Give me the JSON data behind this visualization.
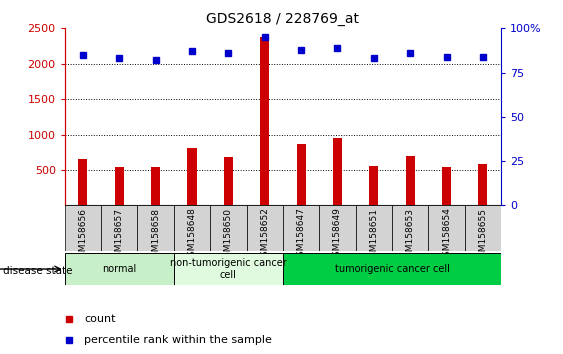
{
  "title": "GDS2618 / 228769_at",
  "samples": [
    "GSM158656",
    "GSM158657",
    "GSM158658",
    "GSM158648",
    "GSM158650",
    "GSM158652",
    "GSM158647",
    "GSM158649",
    "GSM158651",
    "GSM158653",
    "GSM158654",
    "GSM158655"
  ],
  "counts": [
    650,
    540,
    540,
    810,
    680,
    2380,
    870,
    950,
    560,
    700,
    540,
    590
  ],
  "percentiles": [
    85,
    83,
    82,
    87,
    86,
    95,
    88,
    89,
    83,
    86,
    84,
    84
  ],
  "groups": [
    {
      "label": "normal",
      "start": 0,
      "end": 3,
      "color": "#c8f0c8"
    },
    {
      "label": "non-tumorigenic cancer\ncell",
      "start": 3,
      "end": 6,
      "color": "#e0fae0"
    },
    {
      "label": "tumorigenic cancer cell",
      "start": 6,
      "end": 12,
      "color": "#00cc44"
    }
  ],
  "count_color": "#cc0000",
  "percentile_color": "#0000cc",
  "plot_bg": "#ffffff",
  "tick_bg": "#d3d3d3",
  "ylim_left": [
    0,
    2500
  ],
  "ylim_right": [
    0,
    100
  ],
  "yticks_left": [
    500,
    1000,
    1500,
    2000,
    2500
  ],
  "yticks_right": [
    0,
    25,
    50,
    75,
    100
  ],
  "grid_values": [
    500,
    1000,
    1500,
    2000
  ],
  "disease_label": "disease state",
  "legend_count": "count",
  "legend_pct": "percentile rank within the sample",
  "count_bar_width": 0.25,
  "marker_size": 5
}
